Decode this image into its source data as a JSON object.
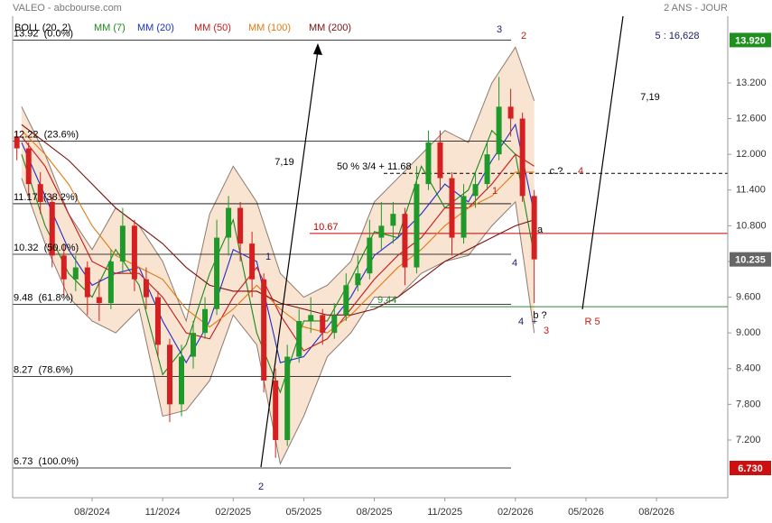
{
  "header": {
    "title": "VALEO - abcbourse.com",
    "period": "2 ANS - JOUR"
  },
  "chart_data": {
    "type": "candlestick",
    "x": [
      4.8,
      5.3,
      5.8,
      6.3,
      6.8,
      7.3,
      7.8,
      8.3,
      8.8,
      9.3,
      9.8,
      10.3,
      10.8,
      11.3,
      11.8,
      12.3,
      12.8,
      13.3,
      13.8,
      14.3,
      14.8,
      15.3,
      15.8,
      16.3,
      16.8,
      17.3,
      17.8,
      18.3,
      18.8,
      19.3,
      19.8,
      20.3,
      20.8,
      21.3,
      21.8,
      22.3,
      22.8,
      23.3,
      23.8,
      24.3,
      24.8,
      25.3,
      25.8,
      26.3,
      26.8
    ],
    "candles": [
      [
        12.3,
        12.4,
        11.9,
        12.1
      ],
      [
        12.1,
        12.2,
        11.3,
        11.5
      ],
      [
        11.5,
        11.7,
        11.0,
        11.2
      ],
      [
        11.2,
        11.3,
        10.1,
        10.3
      ],
      [
        10.3,
        10.5,
        9.6,
        9.9
      ],
      [
        9.9,
        10.3,
        9.7,
        10.1
      ],
      [
        10.1,
        10.2,
        9.3,
        9.6
      ],
      [
        9.6,
        9.9,
        9.2,
        9.5
      ],
      [
        9.5,
        10.4,
        9.4,
        10.2
      ],
      [
        10.2,
        11.1,
        10.0,
        10.8
      ],
      [
        10.8,
        10.9,
        9.7,
        9.9
      ],
      [
        9.9,
        10.1,
        9.4,
        9.6
      ],
      [
        9.6,
        9.7,
        8.6,
        8.8
      ],
      [
        8.8,
        8.9,
        7.5,
        7.8
      ],
      [
        7.8,
        8.8,
        7.6,
        8.6
      ],
      [
        8.6,
        9.2,
        8.4,
        9.0
      ],
      [
        9.0,
        9.6,
        8.9,
        9.4
      ],
      [
        9.4,
        10.9,
        9.3,
        10.6
      ],
      [
        10.6,
        11.3,
        10.3,
        11.1
      ],
      [
        11.1,
        11.2,
        10.2,
        10.5
      ],
      [
        10.5,
        10.7,
        9.6,
        9.9
      ],
      [
        9.9,
        10.0,
        8.0,
        8.2
      ],
      [
        8.2,
        8.4,
        6.9,
        7.2
      ],
      [
        7.2,
        8.8,
        7.1,
        8.6
      ],
      [
        8.6,
        9.4,
        8.5,
        9.2
      ],
      [
        9.2,
        9.6,
        9.0,
        9.3
      ],
      [
        9.3,
        9.4,
        8.8,
        9.0
      ],
      [
        9.0,
        9.5,
        8.9,
        9.3
      ],
      [
        9.3,
        10.0,
        9.2,
        9.8
      ],
      [
        9.8,
        10.3,
        9.7,
        10.0
      ],
      [
        10.0,
        10.9,
        9.9,
        10.6
      ],
      [
        10.6,
        11.2,
        10.4,
        10.8
      ],
      [
        10.8,
        11.2,
        10.5,
        11.0
      ],
      [
        11.0,
        11.1,
        9.8,
        10.1
      ],
      [
        10.1,
        11.8,
        10.0,
        11.5
      ],
      [
        11.5,
        12.4,
        11.4,
        12.2
      ],
      [
        12.2,
        12.4,
        11.4,
        11.6
      ],
      [
        11.6,
        11.7,
        10.3,
        10.6
      ],
      [
        10.6,
        11.5,
        10.5,
        11.3
      ],
      [
        11.3,
        11.7,
        11.1,
        11.5
      ],
      [
        11.5,
        12.2,
        11.4,
        12.0
      ],
      [
        12.0,
        13.3,
        11.9,
        12.8
      ],
      [
        12.8,
        13.1,
        12.3,
        12.6
      ],
      [
        12.6,
        12.7,
        11.2,
        11.3
      ],
      [
        11.3,
        11.4,
        9.5,
        10.235
      ]
    ],
    "up_color": "#1f9a2a",
    "down_color": "#d42020",
    "bollinger": {
      "name": "BOLL (20, 2)",
      "color": "#000000",
      "fill": "#f8dcc6",
      "edge": "#8c7a70",
      "x": [
        5,
        6,
        7,
        8,
        9,
        10,
        11,
        12,
        13,
        14,
        15,
        16,
        17,
        18,
        19,
        20,
        21,
        22,
        23,
        24,
        25,
        26,
        26.8
      ],
      "upper": [
        12.8,
        12.0,
        11.0,
        10.4,
        11.1,
        10.8,
        10.2,
        9.2,
        11.0,
        11.8,
        11.2,
        10.0,
        9.6,
        9.8,
        10.2,
        11.2,
        11.6,
        12.0,
        12.4,
        12.2,
        13.2,
        13.8,
        12.9
      ],
      "lower": [
        11.6,
        10.5,
        9.6,
        9.2,
        9.0,
        9.4,
        7.6,
        7.7,
        8.2,
        9.3,
        8.8,
        6.8,
        7.6,
        8.6,
        9.0,
        9.6,
        9.6,
        10.0,
        10.2,
        10.3,
        10.8,
        11.2,
        9.0
      ]
    },
    "series": [
      {
        "name": "MM (7)",
        "color": "#1a8a1a",
        "x": [
          5,
          6,
          7,
          8,
          9,
          10,
          11,
          12,
          13,
          14,
          15,
          16,
          17,
          18,
          19,
          20,
          21,
          22,
          23,
          24,
          25,
          26,
          26.8
        ],
        "values": [
          12.0,
          10.8,
          10.0,
          9.6,
          10.4,
          9.8,
          8.3,
          8.8,
          10.0,
          10.9,
          9.0,
          8.0,
          9.2,
          9.2,
          9.9,
          10.7,
          10.6,
          11.8,
          11.1,
          11.4,
          12.4,
          12.0,
          10.3
        ]
      },
      {
        "name": "MM (20)",
        "color": "#1c2fc8",
        "x": [
          5,
          6,
          7,
          8,
          9,
          10,
          11,
          12,
          13,
          14,
          15,
          16,
          17,
          18,
          19,
          20,
          21,
          22,
          23,
          24,
          25,
          26,
          26.8
        ],
        "values": [
          12.2,
          11.3,
          10.4,
          9.8,
          10.0,
          10.1,
          9.2,
          8.5,
          9.2,
          10.4,
          10.2,
          8.5,
          8.6,
          9.1,
          9.6,
          10.3,
          10.6,
          11.0,
          11.5,
          11.2,
          11.9,
          12.5,
          11.0
        ]
      },
      {
        "name": "MM (50)",
        "color": "#c41a1a",
        "x": [
          5,
          6,
          7,
          8,
          9,
          10,
          11,
          12,
          13,
          14,
          15,
          16,
          17,
          18,
          19,
          20,
          21,
          22,
          23,
          24,
          25,
          26,
          26.8
        ],
        "values": [
          12.3,
          11.8,
          11.0,
          10.2,
          10.0,
          10.0,
          9.6,
          9.0,
          8.9,
          9.6,
          10.1,
          9.3,
          8.7,
          8.9,
          9.4,
          9.9,
          10.3,
          10.6,
          11.1,
          11.1,
          11.5,
          12.0,
          11.8
        ]
      },
      {
        "name": "MM (100)",
        "color": "#e07a10",
        "x": [
          5,
          6,
          7,
          8,
          9,
          10,
          11,
          12,
          13,
          14,
          15,
          16,
          17,
          18,
          19,
          20,
          21,
          22,
          23,
          24,
          25,
          26,
          26.8
        ],
        "values": [
          12.4,
          12.0,
          11.5,
          10.8,
          10.3,
          10.1,
          9.9,
          9.4,
          9.1,
          9.4,
          9.8,
          9.4,
          9.1,
          9.0,
          9.3,
          9.7,
          10.1,
          10.4,
          10.8,
          11.1,
          11.3,
          11.7,
          11.7
        ]
      },
      {
        "name": "MM (200)",
        "color": "#7a1010",
        "x": [
          5,
          6,
          7,
          8,
          9,
          10,
          11,
          12,
          13,
          14,
          15,
          16,
          17,
          18,
          19,
          20,
          21,
          22,
          23,
          24,
          25,
          26,
          26.8
        ],
        "values": [
          12.5,
          12.2,
          11.9,
          11.5,
          11.1,
          10.8,
          10.5,
          10.1,
          9.8,
          9.7,
          9.7,
          9.5,
          9.4,
          9.3,
          9.3,
          9.4,
          9.6,
          9.9,
          10.2,
          10.4,
          10.6,
          10.8,
          10.9
        ]
      }
    ],
    "xlim": [
      4.62,
      35.03
    ],
    "xticks": [
      {
        "value": 8,
        "label": "08/2024"
      },
      {
        "value": 11,
        "label": "11/2024"
      },
      {
        "value": 14,
        "label": "02/2025"
      },
      {
        "value": 17,
        "label": "05/2025"
      },
      {
        "value": 20,
        "label": "08/2025"
      },
      {
        "value": 23,
        "label": "11/2025"
      },
      {
        "value": 26,
        "label": "02/2026"
      },
      {
        "value": 29,
        "label": "05/2026"
      },
      {
        "value": 32,
        "label": "08/2026"
      }
    ],
    "ylim": [
      6.23,
      14.32
    ],
    "yticks": [
      {
        "value": 13.2,
        "label": "13.200"
      },
      {
        "value": 12.6,
        "label": "12.600"
      },
      {
        "value": 12,
        "label": "12.000"
      },
      {
        "value": 11.4,
        "label": "11.400"
      },
      {
        "value": 10.8,
        "label": "10.800"
      },
      {
        "value": 10.2,
        "label": "10.200"
      },
      {
        "value": 9.6,
        "label": "9.600"
      },
      {
        "value": 9,
        "label": "9.000"
      },
      {
        "value": 8.4,
        "label": "8.400"
      },
      {
        "value": 7.8,
        "label": "7.800"
      },
      {
        "value": 7.2,
        "label": "7.200"
      }
    ],
    "grid": false,
    "fib_levels": [
      {
        "value": 13.92,
        "label": "13.92  (0.0%)"
      },
      {
        "value": 12.22,
        "label": "12.22  (23.6%)"
      },
      {
        "value": 11.17,
        "label": "11.17  (38.2%)"
      },
      {
        "value": 10.32,
        "label": "10.32  (50.0%)"
      },
      {
        "value": 9.48,
        "label": "9.48  (61.8%)"
      },
      {
        "value": 8.27,
        "label": "8.27  (78.6%)"
      },
      {
        "value": 6.73,
        "label": "6.73  (100.0%)"
      }
    ],
    "levels": [
      {
        "value": 10.67,
        "label": "10.67",
        "color": "#c00000",
        "dashed": false
      },
      {
        "value": 11.68,
        "label": "50 % 3/4 + 11.68",
        "color": "#000000",
        "dashed": true
      },
      {
        "value": 9.44,
        "label": "9.44",
        "color": "#2a8a2a",
        "dashed": false
      }
    ],
    "price_tags": [
      {
        "value": 13.92,
        "label": "13.920",
        "color": "#1f8f1f"
      },
      {
        "value": 10.235,
        "label": "10.235",
        "color": "#666666"
      },
      {
        "value": 6.73,
        "label": "6.730",
        "color": "#cc1010"
      }
    ],
    "annotations": [
      {
        "text": "3",
        "color": "#1a1a6e"
      },
      {
        "text": "2",
        "color": "#c41a1a"
      },
      {
        "text": "1",
        "color": "#1a1a6e"
      },
      {
        "text": "2",
        "color": "#1a1a6e"
      },
      {
        "text": "4",
        "color": "#1a1a6e"
      },
      {
        "text": "4",
        "color": "#1a1a6e"
      },
      {
        "text": "+",
        "color": "#1a1a6e"
      },
      {
        "text": "b ?",
        "color": "#000000"
      },
      {
        "text": "3",
        "color": "#c41a1a"
      },
      {
        "text": "1",
        "color": "#c41a1a"
      },
      {
        "text": "4",
        "color": "#c41a1a"
      },
      {
        "text": "c ?",
        "color": "#000000"
      },
      {
        "text": "a",
        "color": "#000000"
      },
      {
        "text": "R 5",
        "color": "#c41a1a"
      },
      {
        "text": "7,19",
        "color": "#000000"
      },
      {
        "text": "7,19",
        "color": "#000000"
      },
      {
        "text": "5 : 16,628",
        "color": "#1a1a6e"
      }
    ]
  }
}
